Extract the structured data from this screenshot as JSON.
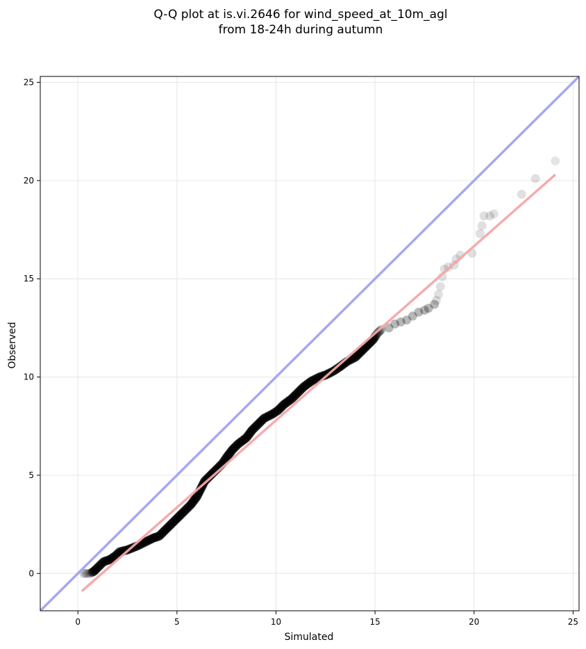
{
  "chart_data": {
    "type": "scatter",
    "title_line1": "Q-Q plot at is.vi.2646 for wind_speed_at_10m_agl",
    "title_line2": "from 18-24h during autumn",
    "xlabel": "Simulated",
    "ylabel": "Observed",
    "xlim": [
      -1.9,
      25.3
    ],
    "ylim": [
      -1.9,
      25.3
    ],
    "xticks": [
      0,
      5,
      10,
      15,
      20,
      25
    ],
    "yticks": [
      0,
      5,
      10,
      15,
      20,
      25
    ],
    "grid": true,
    "identity_line": {
      "x": [
        -1.9,
        25.3
      ],
      "y": [
        -1.9,
        25.3
      ],
      "color": "#a5a8f0"
    },
    "fit_line": {
      "x": [
        0.2,
        24.1
      ],
      "y": [
        -0.9,
        20.3
      ],
      "color": "#f4a7a7"
    },
    "point_color": "#000000",
    "series": [
      {
        "points": [
          [
            0.3,
            0.0
          ],
          [
            0.5,
            0.0
          ],
          [
            0.6,
            0.0
          ],
          [
            0.8,
            0.1
          ],
          [
            0.9,
            0.2
          ],
          [
            1.1,
            0.4
          ],
          [
            1.3,
            0.6
          ],
          [
            1.6,
            0.7
          ],
          [
            1.9,
            0.9
          ],
          [
            2.1,
            1.1
          ],
          [
            2.5,
            1.2
          ],
          [
            3.0,
            1.4
          ],
          [
            3.4,
            1.6
          ],
          [
            3.8,
            1.8
          ],
          [
            4.1,
            1.9
          ],
          [
            4.4,
            2.2
          ],
          [
            4.7,
            2.5
          ],
          [
            5.0,
            2.8
          ],
          [
            5.3,
            3.1
          ],
          [
            5.7,
            3.5
          ],
          [
            6.0,
            3.9
          ],
          [
            6.2,
            4.3
          ],
          [
            6.4,
            4.7
          ],
          [
            6.7,
            5.0
          ],
          [
            7.0,
            5.3
          ],
          [
            7.3,
            5.6
          ],
          [
            7.5,
            5.9
          ],
          [
            7.8,
            6.3
          ],
          [
            8.1,
            6.6
          ],
          [
            8.5,
            6.9
          ],
          [
            8.8,
            7.3
          ],
          [
            9.1,
            7.6
          ],
          [
            9.4,
            7.9
          ],
          [
            9.8,
            8.1
          ],
          [
            10.1,
            8.3
          ],
          [
            10.4,
            8.6
          ],
          [
            10.8,
            8.9
          ],
          [
            11.1,
            9.2
          ],
          [
            11.4,
            9.5
          ],
          [
            11.8,
            9.8
          ],
          [
            12.2,
            10.0
          ],
          [
            12.5,
            10.1
          ],
          [
            12.9,
            10.3
          ],
          [
            13.2,
            10.5
          ],
          [
            13.6,
            10.8
          ],
          [
            14.0,
            11.0
          ],
          [
            14.3,
            11.3
          ],
          [
            14.6,
            11.6
          ],
          [
            14.9,
            11.9
          ],
          [
            15.1,
            12.2
          ],
          [
            15.3,
            12.4
          ],
          [
            15.7,
            12.5
          ],
          [
            16.0,
            12.7
          ],
          [
            16.3,
            12.8
          ],
          [
            16.6,
            12.9
          ],
          [
            16.9,
            13.1
          ],
          [
            17.2,
            13.3
          ],
          [
            17.5,
            13.4
          ],
          [
            17.7,
            13.5
          ],
          [
            18.0,
            13.7
          ],
          [
            18.1,
            13.9
          ],
          [
            18.2,
            14.2
          ],
          [
            18.3,
            14.6
          ],
          [
            18.4,
            15.1
          ],
          [
            18.5,
            15.5
          ],
          [
            18.7,
            15.6
          ],
          [
            19.0,
            15.7
          ],
          [
            19.1,
            16.0
          ],
          [
            19.3,
            16.2
          ],
          [
            19.9,
            16.3
          ],
          [
            20.3,
            17.3
          ],
          [
            20.4,
            17.7
          ],
          [
            20.5,
            18.2
          ],
          [
            20.8,
            18.2
          ],
          [
            21.0,
            18.3
          ],
          [
            22.4,
            19.3
          ],
          [
            23.1,
            20.1
          ],
          [
            24.1,
            21.0
          ]
        ]
      }
    ]
  }
}
